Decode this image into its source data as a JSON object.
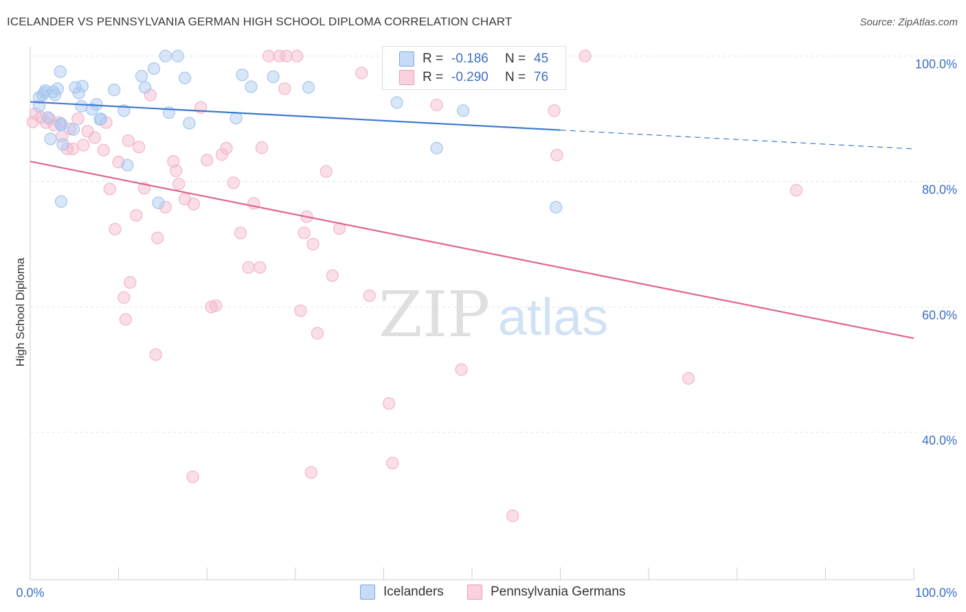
{
  "title": "ICELANDER VS PENNSYLVANIA GERMAN HIGH SCHOOL DIPLOMA CORRELATION CHART",
  "source": "Source: ZipAtlas.com",
  "watermark": {
    "zip": "ZIP",
    "atlas": "atlas"
  },
  "stats": {
    "rows": [
      {
        "r_label": "R =",
        "r_value": "-0.186",
        "n_label": "N =",
        "n_value": "45",
        "color": "#a8c8f0"
      },
      {
        "r_label": "R =",
        "r_value": "-0.290",
        "n_label": "N =",
        "n_value": "76",
        "color": "#f5b8cb"
      }
    ]
  },
  "legend": [
    {
      "label": "Icelanders",
      "color": "#a8c8f0"
    },
    {
      "label": "Pennsylvania Germans",
      "color": "#f5b8cb"
    }
  ],
  "chart_data": {
    "type": "scatter",
    "title": "ICELANDER VS PENNSYLVANIA GERMAN HIGH SCHOOL DIPLOMA CORRELATION CHART",
    "xlabel": "",
    "ylabel": "High School Diploma",
    "xlim": [
      0,
      100
    ],
    "ylim": [
      16.5,
      101.5
    ],
    "x_tick_labels": [
      "0.0%",
      "100.0%"
    ],
    "y_ticks": [
      40,
      60,
      80,
      100
    ],
    "y_tick_labels": [
      "40.0%",
      "60.0%",
      "80.0%",
      "100.0%"
    ],
    "grid": true,
    "legend_position": "bottom",
    "series": [
      {
        "name": "Icelanders",
        "color": "#3b78d0",
        "fill": "#a8c8f0",
        "points": [
          [
            1.0,
            93.4
          ],
          [
            1.0,
            92.0
          ],
          [
            1.4,
            93.8
          ],
          [
            1.6,
            94.2
          ],
          [
            1.7,
            94.5
          ],
          [
            2.0,
            90.2
          ],
          [
            2.3,
            86.8
          ],
          [
            2.6,
            94.3
          ],
          [
            2.8,
            93.8
          ],
          [
            3.1,
            94.8
          ],
          [
            3.4,
            97.5
          ],
          [
            3.5,
            89.2
          ],
          [
            3.7,
            85.9
          ],
          [
            4.9,
            88.3
          ],
          [
            3.5,
            89.0
          ],
          [
            5.1,
            95.0
          ],
          [
            5.5,
            94.1
          ],
          [
            5.8,
            92.0
          ],
          [
            5.9,
            95.2
          ],
          [
            7.0,
            91.5
          ],
          [
            7.5,
            92.3
          ],
          [
            8.0,
            90.0
          ],
          [
            9.5,
            94.6
          ],
          [
            10.6,
            91.3
          ],
          [
            11.0,
            82.6
          ],
          [
            12.6,
            96.8
          ],
          [
            13.0,
            95.0
          ],
          [
            14.0,
            98.0
          ],
          [
            7.9,
            89.9
          ],
          [
            15.3,
            100.0
          ],
          [
            16.7,
            100.0
          ],
          [
            15.7,
            91.0
          ],
          [
            17.5,
            96.5
          ],
          [
            18.0,
            89.3
          ],
          [
            23.3,
            90.1
          ],
          [
            24.0,
            97.0
          ],
          [
            25.0,
            95.1
          ],
          [
            27.5,
            96.7
          ],
          [
            31.5,
            95.0
          ],
          [
            41.5,
            92.6
          ],
          [
            46.0,
            85.3
          ],
          [
            49.0,
            91.3
          ],
          [
            59.5,
            75.9
          ],
          [
            3.5,
            76.8
          ],
          [
            14.5,
            76.6
          ]
        ],
        "trend": {
          "x0": 0,
          "y0": 92.7,
          "x1": 60,
          "y1": 88.2,
          "dash_to_x": 100,
          "dash_to_y": 85.2
        }
      },
      {
        "name": "Pennsylvania Germans",
        "color": "#e0648f",
        "fill": "#f5b8cb",
        "points": [
          [
            0.3,
            89.5
          ],
          [
            0.6,
            90.8
          ],
          [
            1.2,
            90.2
          ],
          [
            1.8,
            89.4
          ],
          [
            2.2,
            90.0
          ],
          [
            2.7,
            89.0
          ],
          [
            3.3,
            89.4
          ],
          [
            3.6,
            87.2
          ],
          [
            4.5,
            88.4
          ],
          [
            4.8,
            85.2
          ],
          [
            5.4,
            90.0
          ],
          [
            6.0,
            85.8
          ],
          [
            6.5,
            88.0
          ],
          [
            7.3,
            87.0
          ],
          [
            8.3,
            85.0
          ],
          [
            8.6,
            89.4
          ],
          [
            9.6,
            72.4
          ],
          [
            9.0,
            78.8
          ],
          [
            10.0,
            83.1
          ],
          [
            10.6,
            61.5
          ],
          [
            11.1,
            86.5
          ],
          [
            11.3,
            63.9
          ],
          [
            12.0,
            74.6
          ],
          [
            12.3,
            85.5
          ],
          [
            12.9,
            78.9
          ],
          [
            13.6,
            93.8
          ],
          [
            14.2,
            52.4
          ],
          [
            14.4,
            71.0
          ],
          [
            15.3,
            75.9
          ],
          [
            16.2,
            83.2
          ],
          [
            16.5,
            81.7
          ],
          [
            16.8,
            79.6
          ],
          [
            17.5,
            77.2
          ],
          [
            18.5,
            76.4
          ],
          [
            19.3,
            91.8
          ],
          [
            20.0,
            83.4
          ],
          [
            20.5,
            60.0
          ],
          [
            21.0,
            60.2
          ],
          [
            21.7,
            84.3
          ],
          [
            22.2,
            85.3
          ],
          [
            23.0,
            79.8
          ],
          [
            23.8,
            71.8
          ],
          [
            24.7,
            66.3
          ],
          [
            25.3,
            76.5
          ],
          [
            26.0,
            66.3
          ],
          [
            26.2,
            85.4
          ],
          [
            27.0,
            100.0
          ],
          [
            28.2,
            100.0
          ],
          [
            28.8,
            94.8
          ],
          [
            29.0,
            100.0
          ],
          [
            30.2,
            100.0
          ],
          [
            30.6,
            59.4
          ],
          [
            31.0,
            71.8
          ],
          [
            31.3,
            74.4
          ],
          [
            32.0,
            70.0
          ],
          [
            32.5,
            55.8
          ],
          [
            33.5,
            81.6
          ],
          [
            34.2,
            65.0
          ],
          [
            35.0,
            72.5
          ],
          [
            37.5,
            97.3
          ],
          [
            38.4,
            61.8
          ],
          [
            40.6,
            44.6
          ],
          [
            41.0,
            35.1
          ],
          [
            41.3,
            100.0
          ],
          [
            46.0,
            92.2
          ],
          [
            48.8,
            50.0
          ],
          [
            54.6,
            26.7
          ],
          [
            59.3,
            91.3
          ],
          [
            59.6,
            84.2
          ],
          [
            62.8,
            100.0
          ],
          [
            74.5,
            48.6
          ],
          [
            86.7,
            78.6
          ],
          [
            10.8,
            58.0
          ],
          [
            18.4,
            32.9
          ],
          [
            31.8,
            33.6
          ],
          [
            4.2,
            85.2
          ]
        ],
        "trend": {
          "x0": 0,
          "y0": 83.2,
          "x1": 100,
          "y1": 55.0
        }
      }
    ]
  }
}
